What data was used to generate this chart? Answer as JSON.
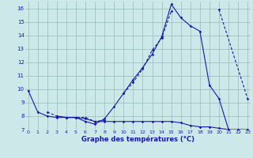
{
  "xlabel": "Graphe des températures (°C)",
  "xlim": [
    -0.3,
    23.3
  ],
  "ylim": [
    7,
    16.5
  ],
  "yticks": [
    7,
    8,
    9,
    10,
    11,
    12,
    13,
    14,
    15,
    16
  ],
  "xticks": [
    0,
    1,
    2,
    3,
    4,
    5,
    6,
    7,
    8,
    9,
    10,
    11,
    12,
    13,
    14,
    15,
    16,
    17,
    18,
    19,
    20,
    21,
    22,
    23
  ],
  "xtick_labels": [
    "0",
    "1",
    "2",
    "3",
    "4",
    "5",
    "6",
    "7",
    "8",
    "9",
    "10",
    "11",
    "12",
    "13",
    "14",
    "15",
    "16",
    "17",
    "18",
    "19",
    "20",
    "21",
    "22",
    "23"
  ],
  "background_color": "#cce8e8",
  "line_color": "#1a1aaa",
  "grid_color": "#99bbbb",
  "line1_y": [
    9.9,
    8.3,
    8.0,
    7.9,
    7.9,
    7.9,
    7.6,
    7.4,
    7.8,
    8.7,
    9.7,
    10.7,
    11.6,
    12.6,
    13.9,
    16.3,
    15.3,
    14.7,
    14.3,
    10.3,
    9.3,
    7.0,
    null,
    null
  ],
  "line2_segments": [
    {
      "x": [
        2,
        3,
        4,
        5,
        6,
        7,
        8
      ],
      "y": [
        8.3,
        8.0,
        7.9,
        7.9,
        7.9,
        7.6,
        7.7
      ]
    },
    {
      "x": [
        10,
        11,
        12,
        13,
        14,
        15
      ],
      "y": [
        9.7,
        10.5,
        11.5,
        12.9,
        13.8,
        15.8
      ]
    },
    {
      "x": [
        20,
        23
      ],
      "y": [
        15.9,
        9.3
      ]
    }
  ],
  "line3_y": [
    null,
    null,
    null,
    8.0,
    7.9,
    7.9,
    7.8,
    7.6,
    7.6,
    7.6,
    7.6,
    7.6,
    7.6,
    7.6,
    7.6,
    7.6,
    7.5,
    7.3,
    7.2,
    7.2,
    7.1,
    7.0,
    7.0,
    7.0
  ]
}
